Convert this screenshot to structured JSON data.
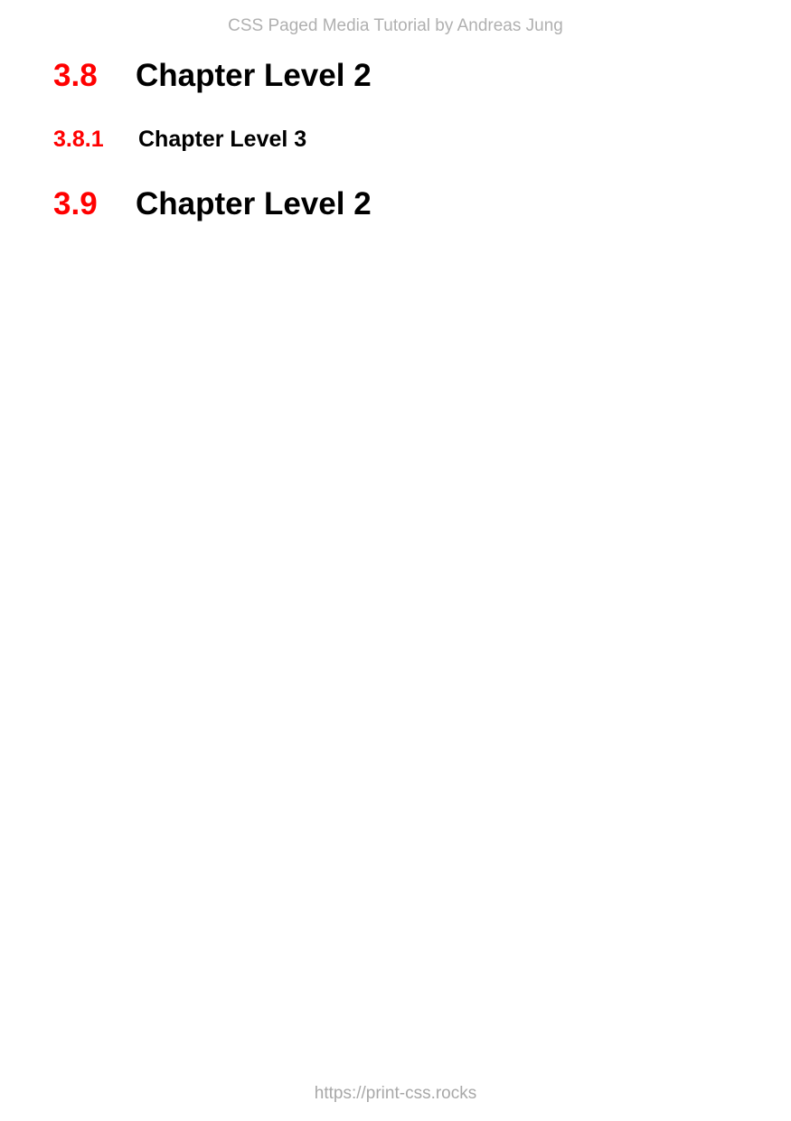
{
  "header": {
    "text": "CSS Paged Media Tutorial by Andreas Jung"
  },
  "headings": [
    {
      "level": 2,
      "number": "3.8",
      "title": "Chapter Level 2"
    },
    {
      "level": 3,
      "number": "3.8.1",
      "title": "Chapter Level 3"
    },
    {
      "level": 2,
      "number": "3.9",
      "title": "Chapter Level 2"
    }
  ],
  "footer": {
    "text": "https://print-css.rocks"
  },
  "colors": {
    "number": "#ff0000",
    "title": "#000000",
    "header": "#b0b0b0",
    "footer": "#a8a8a8"
  }
}
